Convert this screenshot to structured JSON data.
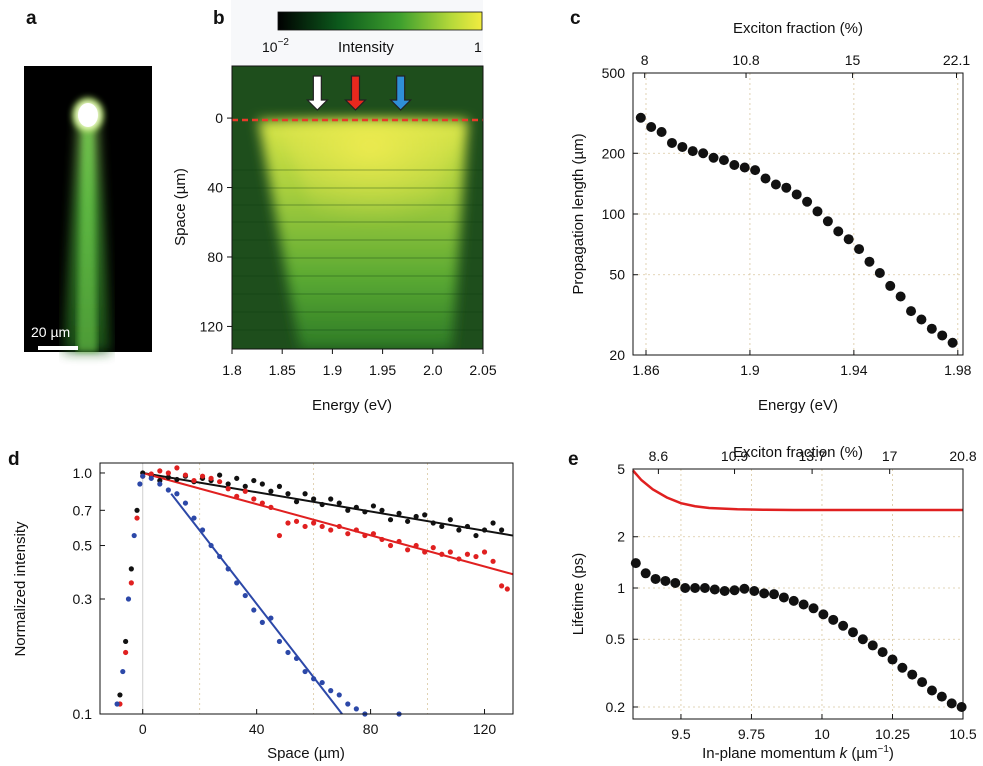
{
  "chart_data": [
    {
      "panel": "a",
      "type": "image",
      "scalebar_label": "20 µm"
    },
    {
      "panel": "b",
      "type": "heatmap",
      "colorbar": {
        "min_label": "10",
        "min_label_exponent": "−2",
        "title": "Intensity",
        "max_label": "1"
      },
      "xlabel": "Energy (eV)",
      "ylabel": "Space (µm)",
      "xticks": [
        "1.8",
        "1.85",
        "1.9",
        "1.95",
        "2.0",
        "2.05"
      ],
      "xlim": [
        1.8,
        2.05
      ],
      "yticks": [
        "0",
        "40",
        "80",
        "120"
      ],
      "ylim": [
        -30,
        133
      ],
      "arrows": [
        {
          "energy": 1.885,
          "color": "#ffffff"
        },
        {
          "energy": 1.923,
          "color": "#e8281e"
        },
        {
          "energy": 1.968,
          "color": "#2f8fd8"
        }
      ]
    },
    {
      "panel": "c",
      "type": "scatter",
      "yscale": "log",
      "xlabel": "Energy (eV)",
      "ylabel": "Propagation length (µm)",
      "top_xlabel": "Exciton fraction (%)",
      "xlim": [
        1.855,
        1.982
      ],
      "ylim": [
        20,
        500
      ],
      "xticks": [
        "1.86",
        "1.9",
        "1.94",
        "1.98"
      ],
      "yticks": [
        "20",
        "50",
        "100",
        "200",
        "500"
      ],
      "top_ticks": [
        {
          "energy": 1.8595,
          "label": "8"
        },
        {
          "energy": 1.8985,
          "label": "10.8"
        },
        {
          "energy": 1.9395,
          "label": "15"
        },
        {
          "energy": 1.9795,
          "label": "22.1"
        }
      ],
      "x": [
        1.858,
        1.862,
        1.866,
        1.87,
        1.874,
        1.878,
        1.882,
        1.886,
        1.89,
        1.894,
        1.898,
        1.902,
        1.906,
        1.91,
        1.914,
        1.918,
        1.922,
        1.926,
        1.93,
        1.934,
        1.938,
        1.942,
        1.946,
        1.95,
        1.954,
        1.958,
        1.962,
        1.966,
        1.97,
        1.974,
        1.978
      ],
      "y": [
        300,
        270,
        255,
        225,
        215,
        205,
        200,
        190,
        185,
        175,
        170,
        165,
        150,
        140,
        135,
        125,
        115,
        103,
        92,
        82,
        75,
        67,
        58,
        51,
        44,
        39,
        33,
        30,
        27,
        25,
        23
      ]
    },
    {
      "panel": "d",
      "type": "scatter",
      "yscale": "log",
      "xlabel": "Space (µm)",
      "ylabel": "Normalized intensity",
      "xlim": [
        -15,
        130
      ],
      "ylim": [
        0.1,
        1.1
      ],
      "xticks": [
        "0",
        "40",
        "80",
        "120"
      ],
      "yticks": [
        "0.1",
        "0.3",
        "0.5",
        "0.7",
        "1.0"
      ],
      "series": [
        {
          "color": "#111111",
          "x": [
            -8,
            -6,
            -4,
            -2,
            0,
            3,
            6,
            9,
            12,
            15,
            18,
            21,
            24,
            27,
            30,
            33,
            36,
            39,
            42,
            45,
            48,
            51,
            54,
            57,
            60,
            63,
            66,
            69,
            72,
            75,
            78,
            81,
            84,
            87,
            90,
            93,
            96,
            99,
            102,
            105,
            108,
            111,
            114,
            117,
            120,
            123,
            126
          ],
          "y": [
            0.12,
            0.2,
            0.4,
            0.7,
            1.0,
            0.98,
            0.93,
            0.96,
            0.94,
            0.97,
            0.92,
            0.95,
            0.93,
            0.98,
            0.9,
            0.95,
            0.88,
            0.93,
            0.9,
            0.84,
            0.88,
            0.82,
            0.76,
            0.82,
            0.78,
            0.74,
            0.78,
            0.75,
            0.7,
            0.72,
            0.69,
            0.73,
            0.7,
            0.64,
            0.68,
            0.63,
            0.66,
            0.67,
            0.62,
            0.6,
            0.64,
            0.58,
            0.6,
            0.55,
            0.58,
            0.62,
            0.58
          ]
        },
        {
          "color": "#e02020",
          "x": [
            -8,
            -6,
            -4,
            -2,
            0,
            3,
            6,
            9,
            12,
            15,
            18,
            21,
            24,
            27,
            30,
            33,
            36,
            39,
            42,
            45,
            48,
            51,
            54,
            57,
            60,
            63,
            66,
            69,
            72,
            75,
            78,
            81,
            84,
            87,
            90,
            93,
            96,
            99,
            102,
            105,
            108,
            111,
            114,
            117,
            120,
            123,
            126,
            128
          ],
          "y": [
            0.11,
            0.18,
            0.35,
            0.65,
            0.97,
            0.99,
            1.02,
            1.0,
            1.05,
            0.98,
            0.93,
            0.97,
            0.95,
            0.92,
            0.86,
            0.8,
            0.84,
            0.78,
            0.75,
            0.72,
            0.55,
            0.62,
            0.63,
            0.6,
            0.62,
            0.6,
            0.58,
            0.6,
            0.56,
            0.58,
            0.55,
            0.56,
            0.53,
            0.5,
            0.52,
            0.48,
            0.5,
            0.47,
            0.49,
            0.46,
            0.47,
            0.44,
            0.46,
            0.45,
            0.47,
            0.43,
            0.34,
            0.33
          ]
        },
        {
          "color": "#2c48a8",
          "x": [
            -9,
            -7,
            -5,
            -3,
            -1,
            0,
            3,
            6,
            9,
            12,
            15,
            18,
            21,
            24,
            27,
            30,
            33,
            36,
            39,
            42,
            45,
            48,
            51,
            54,
            57,
            60,
            63,
            66,
            69,
            72,
            75,
            78,
            90
          ],
          "y": [
            0.11,
            0.15,
            0.3,
            0.55,
            0.9,
            0.97,
            0.95,
            0.9,
            0.85,
            0.82,
            0.75,
            0.65,
            0.58,
            0.5,
            0.45,
            0.4,
            0.35,
            0.31,
            0.27,
            0.24,
            0.25,
            0.2,
            0.18,
            0.17,
            0.15,
            0.14,
            0.135,
            0.125,
            0.12,
            0.11,
            0.105,
            0.1,
            0.1
          ]
        }
      ],
      "fits": [
        {
          "color": "#111111",
          "x": [
            0,
            130
          ],
          "y": [
            1.0,
            0.55
          ]
        },
        {
          "color": "#e02020",
          "x": [
            0,
            130
          ],
          "y": [
            1.0,
            0.38
          ]
        },
        {
          "color": "#2c48a8",
          "x": [
            10,
            70
          ],
          "y": [
            0.82,
            0.1
          ]
        }
      ]
    },
    {
      "panel": "e",
      "type": "scatter",
      "yscale": "log",
      "xlabel": "In-plane momentum k (µm⁻¹)",
      "xlabel_prefix": "In-plane momentum ",
      "xlabel_var": "k",
      "xlabel_unit": " (µm",
      "xlabel_sup": "−1",
      "xlabel_close": ")",
      "ylabel": "Lifetime (ps)",
      "top_xlabel": "Exciton fraction (%)",
      "xlim": [
        9.33,
        10.5
      ],
      "ylim": [
        0.17,
        5
      ],
      "xticks": [
        "9.5",
        "9.75",
        "10",
        "10.25",
        "10.5"
      ],
      "yticks": [
        "0.2",
        "0.5",
        "1",
        "2",
        "5"
      ],
      "top_ticks": [
        {
          "k": 9.42,
          "label": "8.6"
        },
        {
          "k": 9.69,
          "label": "10.9"
        },
        {
          "k": 9.965,
          "label": "13.7"
        },
        {
          "k": 10.24,
          "label": "17"
        },
        {
          "k": 10.5,
          "label": "20.8"
        }
      ],
      "x": [
        9.34,
        9.375,
        9.41,
        9.445,
        9.48,
        9.515,
        9.55,
        9.585,
        9.62,
        9.655,
        9.69,
        9.725,
        9.76,
        9.795,
        9.83,
        9.865,
        9.9,
        9.935,
        9.97,
        10.005,
        10.04,
        10.075,
        10.11,
        10.145,
        10.18,
        10.215,
        10.25,
        10.285,
        10.32,
        10.355,
        10.39,
        10.425,
        10.46,
        10.495
      ],
      "y": [
        1.4,
        1.22,
        1.13,
        1.1,
        1.07,
        1.0,
        1.0,
        1.0,
        0.98,
        0.96,
        0.97,
        0.99,
        0.96,
        0.93,
        0.92,
        0.88,
        0.84,
        0.8,
        0.76,
        0.7,
        0.65,
        0.6,
        0.55,
        0.5,
        0.46,
        0.42,
        0.38,
        0.34,
        0.31,
        0.28,
        0.25,
        0.23,
        0.21,
        0.2
      ],
      "theory": {
        "color": "#e02020",
        "x": [
          9.33,
          9.36,
          9.4,
          9.45,
          9.5,
          9.55,
          9.6,
          9.7,
          9.8,
          9.9,
          10.0,
          10.2,
          10.5
        ],
        "y": [
          4.9,
          4.3,
          3.8,
          3.4,
          3.15,
          3.02,
          2.95,
          2.9,
          2.88,
          2.87,
          2.87,
          2.87,
          2.87
        ]
      }
    }
  ]
}
